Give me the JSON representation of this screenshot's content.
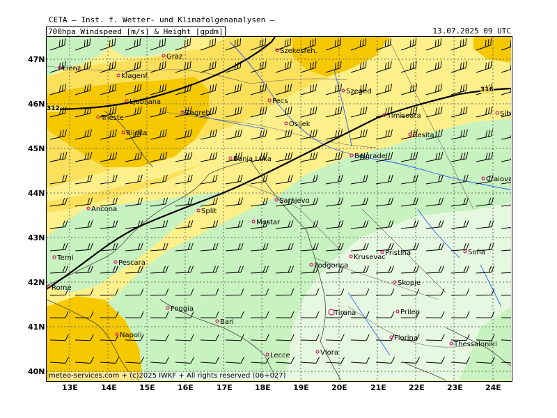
{
  "header": {
    "title": "CETA — Inst. f. Wetter- und Klimafolgenanalysen —",
    "parameter": "700hpa_Windspeed [m/s] & Height [gpdm]",
    "valid_time": "13.07.2025 09 UTC"
  },
  "axes": {
    "lat_labels": [
      "47N",
      "46N",
      "45N",
      "44N",
      "43N",
      "42N",
      "41N",
      "40N"
    ],
    "lon_labels": [
      "13E",
      "14E",
      "15E",
      "16E",
      "17E",
      "18E",
      "19E",
      "20E",
      "21E",
      "22E",
      "23E",
      "24E"
    ]
  },
  "contours": [
    "312",
    "316"
  ],
  "cities": [
    "Graz",
    "Szekesfeh.",
    "Lienz",
    "Klagenf.",
    "Szeged",
    "Ljubljana",
    "Pecs",
    "Zagreb",
    "Timisoara",
    "Sibiu",
    "Trieste",
    "Osijek",
    "Rijeka",
    "Resita",
    "Banja Luka",
    "Belgrade",
    "Craiova",
    "Sarajevo",
    "Ancona",
    "Split",
    "Mostar",
    "Terni",
    "Krusevac",
    "Pristina",
    "Sofia",
    "Pescara",
    "Podgorica",
    "Rome",
    "Skopje",
    "Tirana",
    "Foggia",
    "Prilep",
    "Bari",
    "Napoli",
    "Florina",
    "Thessaloniki",
    "Vlora",
    "Lecce"
  ],
  "copyright": "meteo-services.com + (c)2025 IWKF + All rights reserved (06+027)",
  "legend_colors": {
    "very_light_green": "#e6f8e0",
    "light_green": "#c8f2c0",
    "light_yellow": "#fdf08a",
    "yellow": "#fbe05c",
    "orange_yellow": "#f5c800"
  }
}
